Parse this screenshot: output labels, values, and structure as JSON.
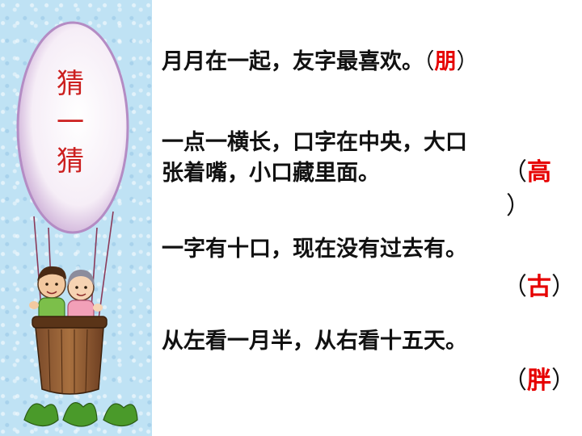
{
  "slide": {
    "title_chars": [
      "猜",
      "一",
      "猜"
    ],
    "riddles": [
      {
        "question": "月月在一起，友字最喜欢。",
        "answer": "朋"
      },
      {
        "question_line1": "一点一横长，口字在中央，大口",
        "question_line2": "张着嘴，小口藏里面。",
        "answer": "高"
      },
      {
        "question": "一字有十口，现在没有过去有。",
        "answer": "古"
      },
      {
        "question": "从左看一月半，从右看十五天。",
        "answer": "胖"
      }
    ],
    "paren_open": "（",
    "paren_close": "）"
  },
  "colors": {
    "answer": "#e60000",
    "title": "#cc1f1f",
    "sidebar_bg": "#bfe2f4"
  }
}
